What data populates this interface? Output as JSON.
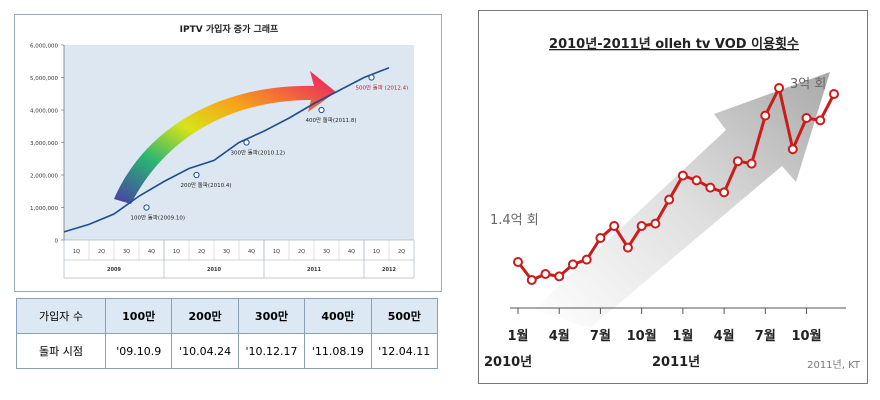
{
  "left_chart": {
    "title": "IPTV 가입자 증가 그래프",
    "y_ticks": [
      "6,000,000",
      "5,000,000",
      "4,000,000",
      "3,000,000",
      "2,000,000",
      "1,000,000",
      "0"
    ],
    "quarters": [
      "1Q",
      "2Q",
      "3Q",
      "4Q",
      "1Q",
      "2Q",
      "3Q",
      "4Q",
      "1Q",
      "2Q",
      "3Q",
      "4Q",
      "1Q",
      "2Q"
    ],
    "years": [
      "2009",
      "2010",
      "2011",
      "2012"
    ],
    "annotations": [
      {
        "text": "100만 돌파(2009.10)",
        "color": "#222222"
      },
      {
        "text": "200만 돌파(2010.4)",
        "color": "#222222"
      },
      {
        "text": "300만 돌파(2010.12)",
        "color": "#222222"
      },
      {
        "text": "400만 돌파(2011.8)",
        "color": "#222222"
      },
      {
        "text": "500만 돌파 (2012.4)",
        "color": "#c0202a"
      }
    ]
  },
  "milestone_table": {
    "header_label": "가입자 수",
    "row_label": "돌파 시점",
    "headers": [
      "100만",
      "200만",
      "300만",
      "400만",
      "500만"
    ],
    "dates": [
      "'09.10.9",
      "'10.04.24",
      "'10.12.17",
      "'11.08.19",
      "'12.04.11"
    ]
  },
  "right_chart": {
    "title": "2010년-2011년 olleh tv VOD 이용횟수",
    "start_label": "1.4억 회",
    "end_label": "3억 회",
    "x_month_labels": [
      "1월",
      "4월",
      "7월",
      "10월",
      "1월",
      "4월",
      "7월",
      "10월"
    ],
    "year_labels": [
      "2010년",
      "2011년"
    ],
    "source": "2011년, KT"
  },
  "chart_data": [
    {
      "type": "line",
      "title": "IPTV 가입자 증가 그래프",
      "categories": [
        "2009 1Q",
        "2009 2Q",
        "2009 3Q",
        "2009 4Q",
        "2010 1Q",
        "2010 2Q",
        "2010 3Q",
        "2010 4Q",
        "2011 1Q",
        "2011 2Q",
        "2011 3Q",
        "2011 4Q",
        "2012 1Q",
        "2012 2Q"
      ],
      "values": [
        250000,
        480000,
        800000,
        1350000,
        1800000,
        2200000,
        2450000,
        3000000,
        3350000,
        3750000,
        4200000,
        4600000,
        5000000,
        5300000
      ],
      "ylim": [
        0,
        6000000
      ],
      "milestones": [
        {
          "label": "100만 돌파(2009.10)",
          "quarter_index": 3,
          "value": 1000000
        },
        {
          "label": "200만 돌파(2010.4)",
          "quarter_index": 5,
          "value": 2000000
        },
        {
          "label": "300만 돌파(2010.12)",
          "quarter_index": 7,
          "value": 3000000
        },
        {
          "label": "400만 돌파(2011.8)",
          "quarter_index": 10,
          "value": 4000000
        },
        {
          "label": "500만 돌파 (2012.4)",
          "quarter_index": 12,
          "value": 5000000
        }
      ],
      "grid": false
    },
    {
      "type": "line",
      "title": "2010년-2011년 olleh tv VOD 이용횟수",
      "unit": "억 회",
      "x": [
        "2010-01",
        "2010-02",
        "2010-03",
        "2010-04",
        "2010-05",
        "2010-06",
        "2010-07",
        "2010-08",
        "2010-09",
        "2010-10",
        "2010-11",
        "2010-12",
        "2011-01",
        "2011-02",
        "2011-03",
        "2011-04",
        "2011-05",
        "2011-06",
        "2011-07",
        "2011-08",
        "2011-09",
        "2011-10",
        "2011-11",
        "2011-12"
      ],
      "values": [
        1.4,
        1.25,
        1.3,
        1.28,
        1.38,
        1.42,
        1.6,
        1.7,
        1.52,
        1.7,
        1.72,
        1.92,
        2.12,
        2.08,
        2.02,
        1.98,
        2.24,
        2.22,
        2.62,
        2.85,
        2.34,
        2.6,
        2.58,
        2.8
      ],
      "ylim": [
        1.0,
        3.0
      ],
      "grid": false
    }
  ]
}
